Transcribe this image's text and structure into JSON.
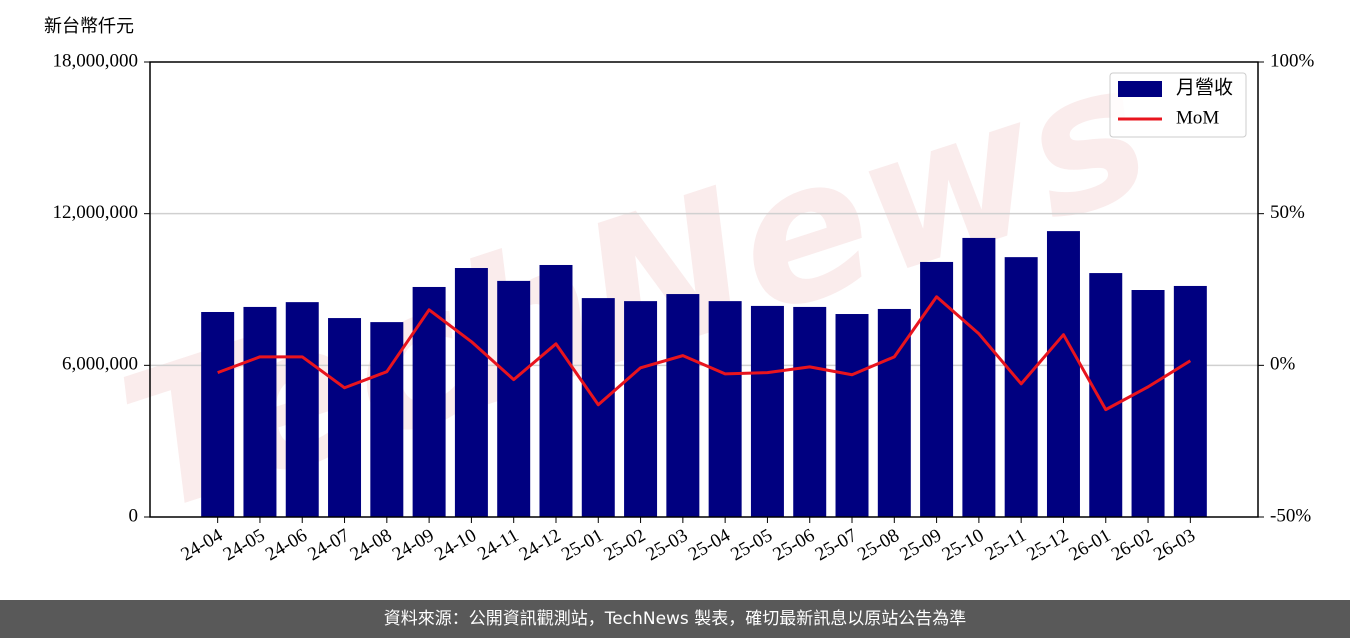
{
  "chart_data": {
    "type": "bar",
    "y_label": "新台幣仟元",
    "watermark": "TechNews",
    "categories": [
      "24-04",
      "24-05",
      "24-06",
      "24-07",
      "24-08",
      "24-09",
      "24-10",
      "24-11",
      "24-12",
      "25-01",
      "25-02",
      "25-03",
      "25-04",
      "25-05",
      "25-06",
      "25-07",
      "25-08",
      "25-09",
      "25-10",
      "25-11",
      "25-12",
      "26-01",
      "26-02",
      "26-03"
    ],
    "series": [
      {
        "name": "月營收",
        "type": "bar",
        "color": "#000080",
        "values": [
          8110000,
          8310000,
          8500000,
          7870000,
          7710000,
          9100000,
          9850000,
          9340000,
          9970000,
          8660000,
          8540000,
          8820000,
          8540000,
          8350000,
          8310000,
          8030000,
          8230000,
          10090000,
          11040000,
          10280000,
          11310000,
          9650000,
          8980000,
          9140000
        ]
      },
      {
        "name": "MoM",
        "type": "line",
        "color": "#e8141e",
        "axis": "y2",
        "values": [
          -2.4,
          2.8,
          2.8,
          -7.4,
          -2.1,
          18.3,
          7.8,
          -4.7,
          7.1,
          -13.0,
          -0.8,
          3.2,
          -2.8,
          -2.4,
          -0.5,
          -3.1,
          2.8,
          22.6,
          10.4,
          -6.1,
          10.1,
          -14.6,
          -7.1,
          1.5
        ]
      }
    ],
    "ylim": [
      0,
      18000000
    ],
    "yticks": [
      0,
      {
        "value": 6000000,
        "label": "6,000,000"
      },
      {
        "value": 12000000,
        "label": "12,000,000"
      },
      {
        "value": 18000000,
        "label": "18,000,000"
      }
    ],
    "y2lim": [
      -50,
      100
    ],
    "y2ticks": [
      {
        "value": -50,
        "label": "-50%"
      },
      {
        "value": 0,
        "label": "0%"
      },
      {
        "value": 50,
        "label": "50%"
      },
      {
        "value": 100,
        "label": "100%"
      }
    ],
    "grid": true,
    "legend": "upper right",
    "footer": "資料來源：公開資訊觀測站，TechNews 製表，確切最新訊息以原站公告為準"
  }
}
